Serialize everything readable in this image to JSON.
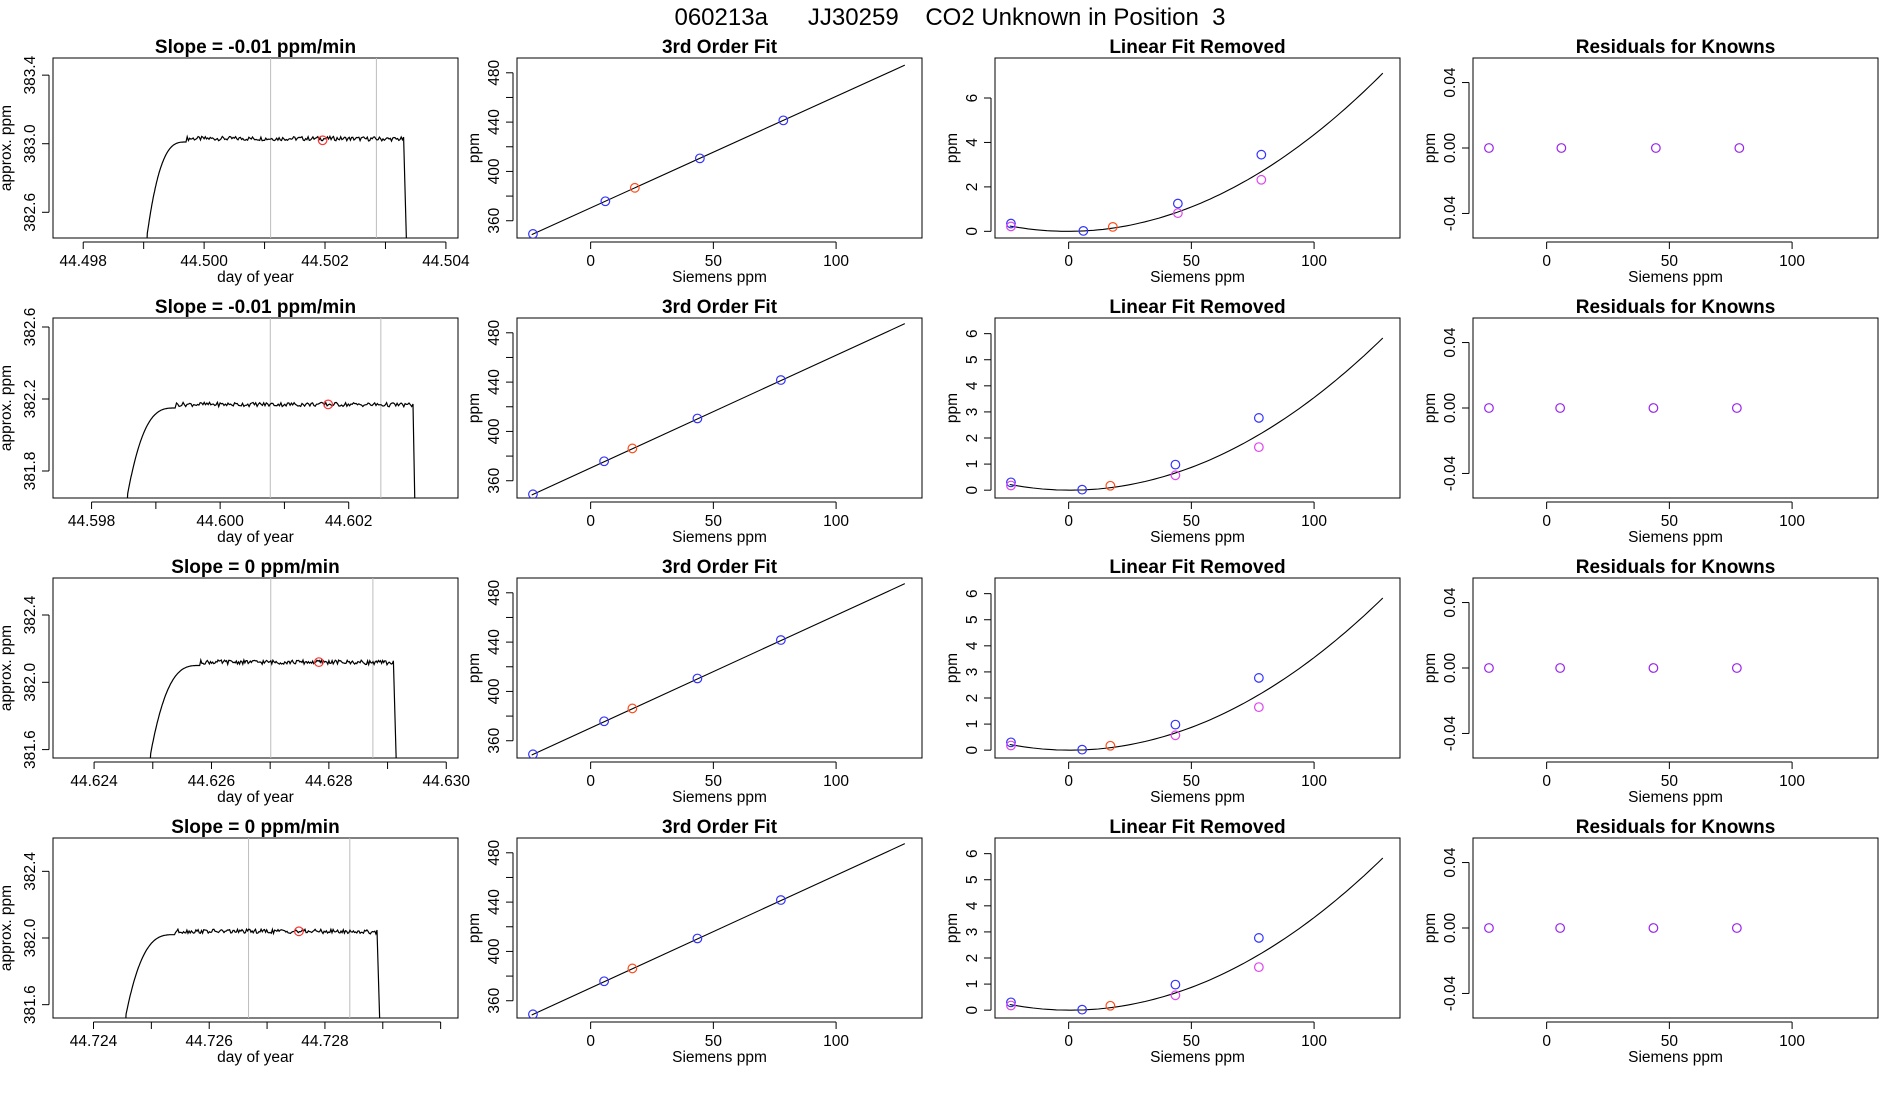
{
  "header": {
    "title": "060213a      JJ30259    CO2 Unknown in Position  3"
  },
  "colors": {
    "known": "#3333ff",
    "unknown_fit": "#ff4d1a",
    "unknown_trace": "#ff3333",
    "linear_removed_alt": "#dd44ee",
    "residual": "#9922ee",
    "vline": "#bdbdbd"
  },
  "chart_data": [
    {
      "type": "line",
      "row": 0,
      "col": 0,
      "title": "Slope =  -0.01  ppm/min",
      "xlabel": "day of year",
      "ylabel": "approx. ppm",
      "xlim": [
        44.4975,
        44.5042
      ],
      "ylim": [
        382.45,
        383.5
      ],
      "xticks": [
        44.498,
        44.5,
        44.502,
        44.504
      ],
      "xtick_labels": [
        "44.498",
        "44.500",
        "44.502",
        "44.504"
      ],
      "yticks": [
        382.6,
        383.0,
        383.4
      ],
      "ytick_labels": [
        "382.6",
        "383.0",
        "383.4"
      ],
      "xstart": 44.49905,
      "xstop": 44.50335,
      "rise_end": 44.4997,
      "plateau_end": 44.5033,
      "plateau": 383.03,
      "start_value": 382.45,
      "baseline_floor": 382.45,
      "vlines": [
        44.5011,
        44.50285
      ],
      "marker": {
        "x": 44.50196,
        "y": 383.02
      }
    },
    {
      "type": "scatter",
      "row": 0,
      "col": 1,
      "title": "3rd Order Fit",
      "xlabel": "Siemens ppm",
      "ylabel": "ppm",
      "xlim": [
        -30,
        135
      ],
      "ylim": [
        346,
        492
      ],
      "xticks": [
        0,
        50,
        100
      ],
      "xtick_labels": [
        "0",
        "50",
        "100"
      ],
      "yticks": [
        360,
        400,
        440,
        480
      ],
      "ytick_labels": [
        "360",
        "400",
        "440",
        "480"
      ],
      "line": {
        "x": [
          -24,
          128
        ],
        "y": [
          348.7,
          486.2
        ]
      },
      "points": [
        {
          "x": -23.5,
          "y": 349.3,
          "kind": "known"
        },
        {
          "x": 6,
          "y": 375.8,
          "kind": "known"
        },
        {
          "x": 18,
          "y": 386.7,
          "kind": "unknown_fit"
        },
        {
          "x": 44.5,
          "y": 410.6,
          "kind": "known"
        },
        {
          "x": 78.5,
          "y": 441.4,
          "kind": "known"
        }
      ]
    },
    {
      "type": "scatter",
      "row": 0,
      "col": 2,
      "title": "Linear Fit Removed",
      "xlabel": "Siemens ppm",
      "ylabel": "ppm",
      "xlim": [
        -30,
        135
      ],
      "ylim": [
        -0.3,
        7.8
      ],
      "xticks": [
        0,
        50,
        100
      ],
      "xtick_labels": [
        "0",
        "50",
        "100"
      ],
      "yticks": [
        0,
        2,
        4,
        6
      ],
      "ytick_labels": [
        "0",
        "2",
        "4",
        "6"
      ],
      "curve": {
        "a": 0.000432,
        "b": 0.00032,
        "c": 0.0,
        "xmin": -24,
        "xmax": 128
      },
      "points": [
        {
          "x": -23.5,
          "y": 0.35,
          "kind": "known"
        },
        {
          "x": -23.5,
          "y": 0.22,
          "kind": "linear_removed_alt"
        },
        {
          "x": 6,
          "y": 0.02,
          "kind": "known"
        },
        {
          "x": 18,
          "y": 0.2,
          "kind": "unknown_fit"
        },
        {
          "x": 44.5,
          "y": 1.25,
          "kind": "known"
        },
        {
          "x": 44.5,
          "y": 0.82,
          "kind": "linear_removed_alt"
        },
        {
          "x": 78.5,
          "y": 3.45,
          "kind": "known"
        },
        {
          "x": 78.5,
          "y": 2.32,
          "kind": "linear_removed_alt"
        }
      ]
    },
    {
      "type": "scatter",
      "row": 0,
      "col": 3,
      "title": "Residuals for Knowns",
      "xlabel": "Siemens ppm",
      "ylabel": "ppm",
      "xlim": [
        -30,
        135
      ],
      "ylim": [
        -0.055,
        0.055
      ],
      "xticks": [
        0,
        50,
        100
      ],
      "xtick_labels": [
        "0",
        "50",
        "100"
      ],
      "yticks": [
        -0.04,
        0.0,
        0.04
      ],
      "ytick_labels": [
        "-0.04",
        "0.00",
        "0.04"
      ],
      "points": [
        {
          "x": -23.5,
          "y": 0,
          "kind": "residual"
        },
        {
          "x": 6,
          "y": 0,
          "kind": "residual"
        },
        {
          "x": 44.5,
          "y": 0,
          "kind": "residual"
        },
        {
          "x": 78.5,
          "y": 0,
          "kind": "residual"
        }
      ]
    },
    {
      "type": "line",
      "row": 1,
      "col": 0,
      "title": "Slope =  -0.01  ppm/min",
      "xlabel": "day of year",
      "ylabel": "approx. ppm",
      "xlim": [
        44.5974,
        44.6037
      ],
      "ylim": [
        381.65,
        382.65
      ],
      "xticks": [
        44.598,
        44.6,
        44.602
      ],
      "xtick_labels": [
        "44.598",
        "44.600",
        "44.602"
      ],
      "yticks": [
        381.8,
        382.2,
        382.6
      ],
      "ytick_labels": [
        "381.8",
        "382.2",
        "382.6"
      ],
      "xstart": 44.59855,
      "xstop": 44.60303,
      "rise_end": 44.5993,
      "plateau_end": 44.603,
      "plateau": 382.17,
      "start_value": 381.65,
      "baseline_floor": 381.65,
      "vlines": [
        44.60078,
        44.6025
      ],
      "marker": {
        "x": 44.60168,
        "y": 382.17
      }
    },
    {
      "type": "scatter",
      "row": 1,
      "col": 1,
      "title": "3rd Order Fit",
      "xlabel": "Siemens ppm",
      "ylabel": "ppm",
      "xlim": [
        -30,
        135
      ],
      "ylim": [
        346,
        492
      ],
      "xticks": [
        0,
        50,
        100
      ],
      "xtick_labels": [
        "0",
        "50",
        "100"
      ],
      "yticks": [
        360,
        400,
        440,
        480
      ],
      "ytick_labels": [
        "360",
        "400",
        "440",
        "480"
      ],
      "line": {
        "x": [
          -24,
          128
        ],
        "y": [
          348.4,
          487.4
        ]
      },
      "points": [
        {
          "x": -23.5,
          "y": 349.0,
          "kind": "known"
        },
        {
          "x": 5.5,
          "y": 375.8,
          "kind": "known"
        },
        {
          "x": 17,
          "y": 386.2,
          "kind": "unknown_fit"
        },
        {
          "x": 43.5,
          "y": 410.5,
          "kind": "known"
        },
        {
          "x": 77.5,
          "y": 441.7,
          "kind": "known"
        }
      ]
    },
    {
      "type": "scatter",
      "row": 1,
      "col": 2,
      "title": "Linear Fit Removed",
      "xlabel": "Siemens ppm",
      "ylabel": "ppm",
      "xlim": [
        -30,
        135
      ],
      "ylim": [
        -0.3,
        6.6
      ],
      "xticks": [
        0,
        50,
        100
      ],
      "xtick_labels": [
        "0",
        "50",
        "100"
      ],
      "yticks": [
        0,
        1,
        2,
        3,
        4,
        5,
        6
      ],
      "ytick_labels": [
        "0",
        "1",
        "2",
        "3",
        "4",
        "5",
        "6"
      ],
      "curve": {
        "a": 0.00036,
        "b": -0.0005,
        "c": 0.0,
        "xmin": -24,
        "xmax": 128
      },
      "points": [
        {
          "x": -23.5,
          "y": 0.3,
          "kind": "known"
        },
        {
          "x": -23.5,
          "y": 0.18,
          "kind": "linear_removed_alt"
        },
        {
          "x": 5.5,
          "y": 0.02,
          "kind": "known"
        },
        {
          "x": 17,
          "y": 0.17,
          "kind": "unknown_fit"
        },
        {
          "x": 43.5,
          "y": 0.98,
          "kind": "known"
        },
        {
          "x": 43.5,
          "y": 0.57,
          "kind": "linear_removed_alt"
        },
        {
          "x": 77.5,
          "y": 2.77,
          "kind": "known"
        },
        {
          "x": 77.5,
          "y": 1.65,
          "kind": "linear_removed_alt"
        }
      ]
    },
    {
      "type": "scatter",
      "row": 1,
      "col": 3,
      "title": "Residuals for Knowns",
      "xlabel": "Siemens ppm",
      "ylabel": "ppm",
      "xlim": [
        -30,
        135
      ],
      "ylim": [
        -0.055,
        0.055
      ],
      "xticks": [
        0,
        50,
        100
      ],
      "xtick_labels": [
        "0",
        "50",
        "100"
      ],
      "yticks": [
        -0.04,
        0.0,
        0.04
      ],
      "ytick_labels": [
        "-0.04",
        "0.00",
        "0.04"
      ],
      "points": [
        {
          "x": -23.5,
          "y": 0,
          "kind": "residual"
        },
        {
          "x": 5.5,
          "y": 0,
          "kind": "residual"
        },
        {
          "x": 43.5,
          "y": 0,
          "kind": "residual"
        },
        {
          "x": 77.5,
          "y": 0,
          "kind": "residual"
        }
      ]
    },
    {
      "type": "line",
      "row": 2,
      "col": 0,
      "title": "Slope =  0  ppm/min",
      "xlabel": "day of year",
      "ylabel": "approx. ppm",
      "xlim": [
        44.6233,
        44.6302
      ],
      "ylim": [
        381.55,
        382.62
      ],
      "xticks": [
        44.624,
        44.626,
        44.628,
        44.63
      ],
      "xtick_labels": [
        "44.624",
        "44.626",
        "44.628",
        "44.630"
      ],
      "yticks": [
        381.6,
        382.0,
        382.4
      ],
      "ytick_labels": [
        "381.6",
        "382.0",
        "382.4"
      ],
      "xstart": 44.62495,
      "xstop": 44.62915,
      "rise_end": 44.6258,
      "plateau_end": 44.6291,
      "plateau": 382.12,
      "start_value": 381.55,
      "baseline_floor": 381.55,
      "vlines": [
        44.62701,
        44.62875
      ],
      "marker": {
        "x": 44.62783,
        "y": 382.12
      }
    },
    {
      "type": "scatter",
      "row": 2,
      "col": 1,
      "title": "3rd Order Fit",
      "xlabel": "Siemens ppm",
      "ylabel": "ppm",
      "xlim": [
        -30,
        135
      ],
      "ylim": [
        346,
        492
      ],
      "xticks": [
        0,
        50,
        100
      ],
      "xtick_labels": [
        "0",
        "50",
        "100"
      ],
      "yticks": [
        360,
        400,
        440,
        480
      ],
      "ytick_labels": [
        "360",
        "400",
        "440",
        "480"
      ],
      "line": {
        "x": [
          -24,
          128
        ],
        "y": [
          348.4,
          487.4
        ]
      },
      "points": [
        {
          "x": -23.5,
          "y": 349.0,
          "kind": "known"
        },
        {
          "x": 5.5,
          "y": 375.8,
          "kind": "known"
        },
        {
          "x": 17,
          "y": 386.2,
          "kind": "unknown_fit"
        },
        {
          "x": 43.5,
          "y": 410.5,
          "kind": "known"
        },
        {
          "x": 77.5,
          "y": 441.7,
          "kind": "known"
        }
      ]
    },
    {
      "type": "scatter",
      "row": 2,
      "col": 2,
      "title": "Linear Fit Removed",
      "xlabel": "Siemens ppm",
      "ylabel": "ppm",
      "xlim": [
        -30,
        135
      ],
      "ylim": [
        -0.3,
        6.6
      ],
      "xticks": [
        0,
        50,
        100
      ],
      "xtick_labels": [
        "0",
        "50",
        "100"
      ],
      "yticks": [
        0,
        1,
        2,
        3,
        4,
        5,
        6
      ],
      "ytick_labels": [
        "0",
        "1",
        "2",
        "3",
        "4",
        "5",
        "6"
      ],
      "curve": {
        "a": 0.00036,
        "b": -0.0005,
        "c": 0.0,
        "xmin": -24,
        "xmax": 128
      },
      "points": [
        {
          "x": -23.5,
          "y": 0.3,
          "kind": "known"
        },
        {
          "x": -23.5,
          "y": 0.18,
          "kind": "linear_removed_alt"
        },
        {
          "x": 5.5,
          "y": 0.02,
          "kind": "known"
        },
        {
          "x": 17,
          "y": 0.17,
          "kind": "unknown_fit"
        },
        {
          "x": 43.5,
          "y": 0.98,
          "kind": "known"
        },
        {
          "x": 43.5,
          "y": 0.57,
          "kind": "linear_removed_alt"
        },
        {
          "x": 77.5,
          "y": 2.77,
          "kind": "known"
        },
        {
          "x": 77.5,
          "y": 1.65,
          "kind": "linear_removed_alt"
        }
      ]
    },
    {
      "type": "scatter",
      "row": 2,
      "col": 3,
      "title": "Residuals for Knowns",
      "xlabel": "Siemens ppm",
      "ylabel": "ppm",
      "xlim": [
        -30,
        135
      ],
      "ylim": [
        -0.055,
        0.055
      ],
      "xticks": [
        0,
        50,
        100
      ],
      "xtick_labels": [
        "0",
        "50",
        "100"
      ],
      "yticks": [
        -0.04,
        0.0,
        0.04
      ],
      "ytick_labels": [
        "-0.04",
        "0.00",
        "0.04"
      ],
      "points": [
        {
          "x": -23.5,
          "y": 0,
          "kind": "residual"
        },
        {
          "x": 5.5,
          "y": 0,
          "kind": "residual"
        },
        {
          "x": 43.5,
          "y": 0,
          "kind": "residual"
        },
        {
          "x": 77.5,
          "y": 0,
          "kind": "residual"
        }
      ]
    },
    {
      "type": "line",
      "row": 3,
      "col": 0,
      "title": "Slope =  0  ppm/min",
      "xlabel": "day of year",
      "ylabel": "approx. ppm",
      "xlim": [
        44.7233,
        44.7303
      ],
      "ylim": [
        381.52,
        382.6
      ],
      "xticks": [
        44.724,
        44.726,
        44.728,
        44.73
      ],
      "xtick_labels": [
        "44.724",
        "44.726",
        "44.728",
        ""
      ],
      "yticks": [
        381.6,
        382.0,
        382.4
      ],
      "ytick_labels": [
        "381.6",
        "382.0",
        "382.4"
      ],
      "xstart": 44.72455,
      "xstop": 44.72895,
      "rise_end": 44.7254,
      "plateau_end": 44.7289,
      "plateau": 382.04,
      "start_value": 381.52,
      "baseline_floor": 381.52,
      "vlines": [
        44.72668,
        44.72843
      ],
      "marker": {
        "x": 44.72755,
        "y": 382.04
      }
    },
    {
      "type": "scatter",
      "row": 3,
      "col": 1,
      "title": "3rd Order Fit",
      "xlabel": "Siemens ppm",
      "ylabel": "ppm",
      "xlim": [
        -30,
        135
      ],
      "ylim": [
        346,
        492
      ],
      "xticks": [
        0,
        50,
        100
      ],
      "xtick_labels": [
        "0",
        "50",
        "100"
      ],
      "yticks": [
        360,
        400,
        440,
        480
      ],
      "ytick_labels": [
        "360",
        "400",
        "440",
        "480"
      ],
      "line": {
        "x": [
          -24,
          128
        ],
        "y": [
          348.4,
          487.4
        ]
      },
      "points": [
        {
          "x": -23.5,
          "y": 349.0,
          "kind": "known"
        },
        {
          "x": 5.5,
          "y": 375.8,
          "kind": "known"
        },
        {
          "x": 17,
          "y": 386.2,
          "kind": "unknown_fit"
        },
        {
          "x": 43.5,
          "y": 410.5,
          "kind": "known"
        },
        {
          "x": 77.5,
          "y": 441.7,
          "kind": "known"
        }
      ]
    },
    {
      "type": "scatter",
      "row": 3,
      "col": 2,
      "title": "Linear Fit Removed",
      "xlabel": "Siemens ppm",
      "ylabel": "ppm",
      "xlim": [
        -30,
        135
      ],
      "ylim": [
        -0.3,
        6.6
      ],
      "xticks": [
        0,
        50,
        100
      ],
      "xtick_labels": [
        "0",
        "50",
        "100"
      ],
      "yticks": [
        0,
        1,
        2,
        3,
        4,
        5,
        6
      ],
      "ytick_labels": [
        "0",
        "1",
        "2",
        "3",
        "4",
        "5",
        "6"
      ],
      "curve": {
        "a": 0.00036,
        "b": -0.0005,
        "c": 0.0,
        "xmin": -24,
        "xmax": 128
      },
      "points": [
        {
          "x": -23.5,
          "y": 0.3,
          "kind": "known"
        },
        {
          "x": -23.5,
          "y": 0.18,
          "kind": "linear_removed_alt"
        },
        {
          "x": 5.5,
          "y": 0.02,
          "kind": "known"
        },
        {
          "x": 17,
          "y": 0.17,
          "kind": "unknown_fit"
        },
        {
          "x": 43.5,
          "y": 0.98,
          "kind": "known"
        },
        {
          "x": 43.5,
          "y": 0.57,
          "kind": "linear_removed_alt"
        },
        {
          "x": 77.5,
          "y": 2.77,
          "kind": "known"
        },
        {
          "x": 77.5,
          "y": 1.65,
          "kind": "linear_removed_alt"
        }
      ]
    },
    {
      "type": "scatter",
      "row": 3,
      "col": 3,
      "title": "Residuals for Knowns",
      "xlabel": "Siemens ppm",
      "ylabel": "ppm",
      "xlim": [
        -30,
        135
      ],
      "ylim": [
        -0.055,
        0.055
      ],
      "xticks": [
        0,
        50,
        100
      ],
      "xtick_labels": [
        "0",
        "50",
        "100"
      ],
      "yticks": [
        -0.04,
        0.0,
        0.04
      ],
      "ytick_labels": [
        "-0.04",
        "0.00",
        "0.04"
      ],
      "points": [
        {
          "x": -23.5,
          "y": 0,
          "kind": "residual"
        },
        {
          "x": 5.5,
          "y": 0,
          "kind": "residual"
        },
        {
          "x": 43.5,
          "y": 0,
          "kind": "residual"
        },
        {
          "x": 77.5,
          "y": 0,
          "kind": "residual"
        }
      ]
    }
  ]
}
